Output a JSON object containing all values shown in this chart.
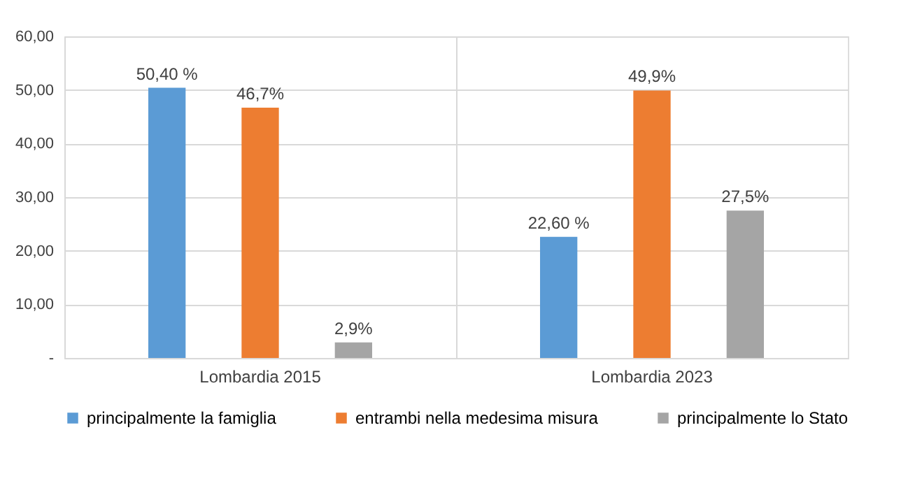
{
  "chart_data": {
    "type": "bar",
    "categories": [
      "Lombardia 2015",
      "Lombardia 2023"
    ],
    "series": [
      {
        "name": "principalmente la famiglia",
        "color": "#5b9bd5",
        "values": [
          50.4,
          22.6
        ],
        "value_labels": [
          "50,40 %",
          "22,60 %"
        ]
      },
      {
        "name": "entrambi nella medesima misura",
        "color": "#ed7d31",
        "values": [
          46.7,
          49.9
        ],
        "value_labels": [
          "46,7%",
          "49,9%"
        ]
      },
      {
        "name": "principalmente lo Stato",
        "color": "#a5a5a5",
        "values": [
          2.9,
          27.5
        ],
        "value_labels": [
          "2,9%",
          "27,5%"
        ]
      }
    ],
    "ylim": [
      0,
      60
    ],
    "yticks": [
      {
        "value": 0,
        "label": "-"
      },
      {
        "value": 10,
        "label": "10,00"
      },
      {
        "value": 20,
        "label": "20,00"
      },
      {
        "value": 30,
        "label": "30,00"
      },
      {
        "value": 40,
        "label": "40,00"
      },
      {
        "value": 50,
        "label": "50,00"
      },
      {
        "value": 60,
        "label": "60,00"
      }
    ],
    "grid": true,
    "legend": "bottom"
  }
}
